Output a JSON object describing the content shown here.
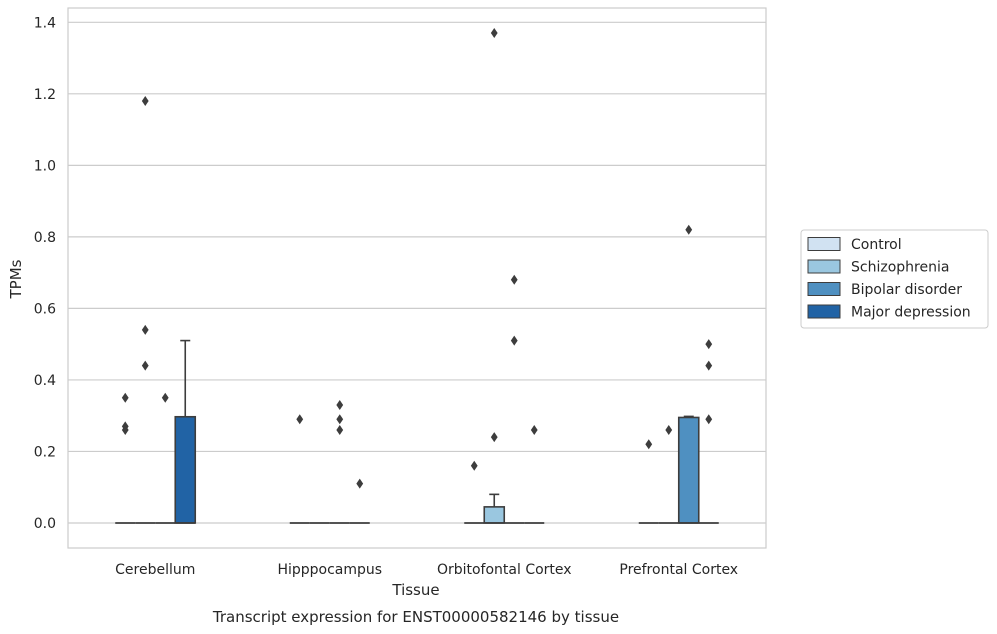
{
  "chart_data": {
    "type": "box",
    "title": "",
    "caption": "Transcript expression for ENST00000582146 by tissue",
    "xlabel": "Tissue",
    "ylabel": "TPMs",
    "ylim": [
      -0.07,
      1.44
    ],
    "yticks": [
      0.0,
      0.2,
      0.4,
      0.6,
      0.8,
      1.0,
      1.2,
      1.4
    ],
    "ytick_labels": [
      "0.0",
      "0.2",
      "0.4",
      "0.6",
      "0.8",
      "1.0",
      "1.2",
      "1.4"
    ],
    "grid": "horizontal",
    "legend_position": "right",
    "categories": [
      "Cerebellum",
      "Hipppocampus",
      "Orbitofontal Cortex",
      "Prefrontal Cortex"
    ],
    "series": [
      {
        "name": "Control",
        "color": "#d1e2f2",
        "boxes": [
          {
            "q1": 0,
            "median": 0,
            "q3": 0,
            "whisker_low": 0,
            "whisker_high": 0,
            "outliers": [
              0.26,
              0.27,
              0.35
            ]
          },
          {
            "q1": 0,
            "median": 0,
            "q3": 0,
            "whisker_low": 0,
            "whisker_high": 0,
            "outliers": [
              0.29
            ]
          },
          {
            "q1": 0,
            "median": 0,
            "q3": 0,
            "whisker_low": 0,
            "whisker_high": 0,
            "outliers": [
              0.16
            ]
          },
          {
            "q1": 0,
            "median": 0,
            "q3": 0,
            "whisker_low": 0,
            "whisker_high": 0,
            "outliers": [
              0.22
            ]
          }
        ]
      },
      {
        "name": "Schizophrenia",
        "color": "#9ac7e0",
        "boxes": [
          {
            "q1": 0,
            "median": 0,
            "q3": 0,
            "whisker_low": 0,
            "whisker_high": 0,
            "outliers": [
              1.18,
              0.54,
              0.44
            ]
          },
          {
            "q1": 0,
            "median": 0,
            "q3": 0,
            "whisker_low": 0,
            "whisker_high": 0,
            "outliers": []
          },
          {
            "q1": 0,
            "median": 0,
            "q3": 0.045,
            "whisker_low": 0,
            "whisker_high": 0.08,
            "outliers": [
              1.37,
              0.24
            ]
          },
          {
            "q1": 0,
            "median": 0,
            "q3": 0,
            "whisker_low": 0,
            "whisker_high": 0,
            "outliers": [
              0.26
            ]
          }
        ]
      },
      {
        "name": "Bipolar disorder",
        "color": "#4f90c1",
        "boxes": [
          {
            "q1": 0,
            "median": 0,
            "q3": 0,
            "whisker_low": 0,
            "whisker_high": 0,
            "outliers": [
              0.35
            ]
          },
          {
            "q1": 0,
            "median": 0,
            "q3": 0,
            "whisker_low": 0,
            "whisker_high": 0,
            "outliers": [
              0.33,
              0.29,
              0.26
            ]
          },
          {
            "q1": 0,
            "median": 0,
            "q3": 0,
            "whisker_low": 0,
            "whisker_high": 0,
            "outliers": [
              0.68,
              0.51
            ]
          },
          {
            "q1": 0,
            "median": 0,
            "q3": 0.295,
            "whisker_low": 0,
            "whisker_high": 0.298,
            "outliers": [
              0.82
            ]
          }
        ]
      },
      {
        "name": "Major depression",
        "color": "#2163a5",
        "boxes": [
          {
            "q1": 0,
            "median": 0,
            "q3": 0.297,
            "whisker_low": 0,
            "whisker_high": 0.51,
            "outliers": []
          },
          {
            "q1": 0,
            "median": 0,
            "q3": 0,
            "whisker_low": 0,
            "whisker_high": 0,
            "outliers": [
              0.11
            ]
          },
          {
            "q1": 0,
            "median": 0,
            "q3": 0,
            "whisker_low": 0,
            "whisker_high": 0,
            "outliers": [
              0.26
            ]
          },
          {
            "q1": 0,
            "median": 0,
            "q3": 0,
            "whisker_low": 0,
            "whisker_high": 0,
            "outliers": [
              0.5,
              0.44,
              0.29
            ]
          }
        ]
      }
    ]
  }
}
